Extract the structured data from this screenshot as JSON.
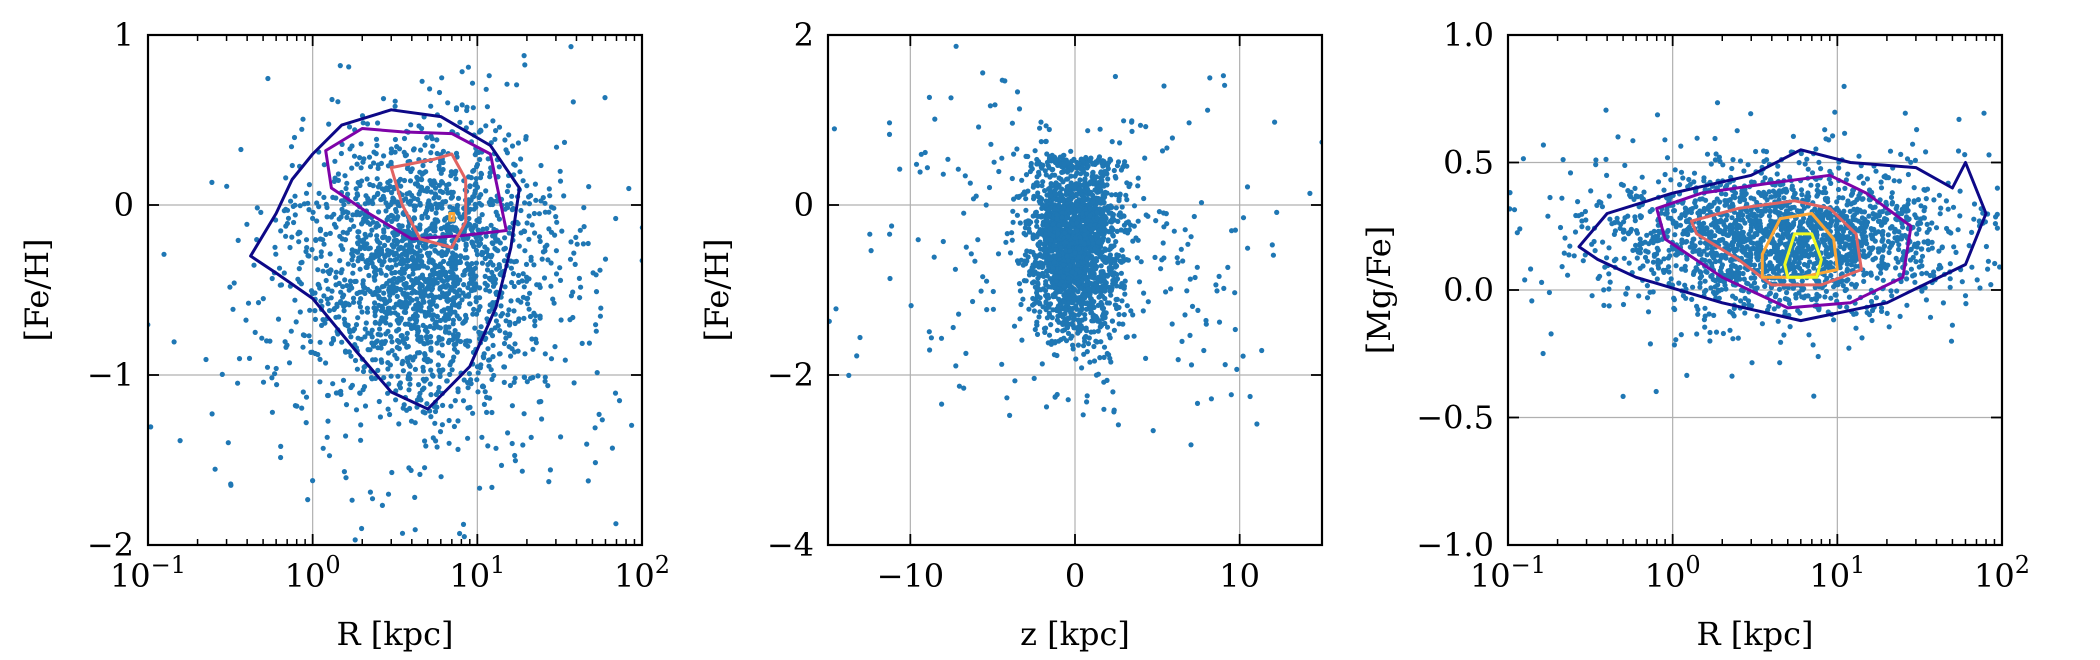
{
  "chart_data": [
    {
      "type": "scatter",
      "xscale": "log",
      "x_ticks": [
        {
          "value": 0.1,
          "base": "10",
          "exp": "−1"
        },
        {
          "value": 1,
          "base": "10",
          "exp": "0"
        },
        {
          "value": 10,
          "base": "10",
          "exp": "1"
        },
        {
          "value": 100,
          "base": "10",
          "exp": "2"
        }
      ],
      "y_ticks": [
        {
          "value": -2,
          "label": "−2"
        },
        {
          "value": -1,
          "label": "−1"
        },
        {
          "value": 0,
          "label": "0"
        },
        {
          "value": 1,
          "label": "1"
        }
      ],
      "xlim": [
        0.1,
        100
      ],
      "ylim": [
        -2,
        1
      ],
      "xlabel": "R [kpc]",
      "ylabel": "[Fe/H]",
      "grid": true,
      "point_color": "#1f77b4",
      "point_cloud": {
        "n": 2200,
        "center_x": 5,
        "center_y": -0.35,
        "spread_log_x": 0.38,
        "spread_y": 0.42
      },
      "contours": [
        {
          "level": 1,
          "color": "#0d0887",
          "points": [
            [
              0.42,
              -0.3
            ],
            [
              0.6,
              -0.05
            ],
            [
              0.75,
              0.15
            ],
            [
              1.0,
              0.3
            ],
            [
              1.5,
              0.47
            ],
            [
              3.0,
              0.56
            ],
            [
              6.0,
              0.52
            ],
            [
              12.0,
              0.35
            ],
            [
              18.0,
              0.1
            ],
            [
              16.0,
              -0.25
            ],
            [
              13.0,
              -0.6
            ],
            [
              9.0,
              -0.95
            ],
            [
              5.0,
              -1.2
            ],
            [
              3.0,
              -1.1
            ],
            [
              1.8,
              -0.85
            ],
            [
              1.0,
              -0.55
            ],
            [
              0.6,
              -0.4
            ]
          ]
        },
        {
          "level": 2,
          "color": "#7e03a8",
          "points": [
            [
              1.2,
              0.32
            ],
            [
              2.0,
              0.45
            ],
            [
              3.5,
              0.43
            ],
            [
              7.0,
              0.42
            ],
            [
              12.0,
              0.3
            ],
            [
              15.0,
              -0.15
            ],
            [
              8.0,
              -0.18
            ],
            [
              4.0,
              -0.2
            ],
            [
              2.2,
              -0.05
            ],
            [
              1.3,
              0.1
            ]
          ]
        },
        {
          "level": 3,
          "color": "#e16462",
          "points": [
            [
              3.0,
              0.22
            ],
            [
              5.5,
              0.27
            ],
            [
              7.0,
              0.3
            ],
            [
              8.5,
              0.15
            ],
            [
              8.5,
              -0.1
            ],
            [
              7.0,
              -0.25
            ],
            [
              4.5,
              -0.2
            ],
            [
              3.5,
              0.0
            ]
          ]
        },
        {
          "level": 4,
          "color": "#fca636",
          "points": [
            [
              6.8,
              -0.05
            ],
            [
              7.2,
              -0.05
            ],
            [
              7.2,
              -0.09
            ],
            [
              6.8,
              -0.09
            ]
          ]
        }
      ]
    },
    {
      "type": "scatter",
      "xscale": "linear",
      "x_ticks": [
        {
          "value": -10,
          "label": "−10"
        },
        {
          "value": 0,
          "label": "0"
        },
        {
          "value": 10,
          "label": "10"
        }
      ],
      "y_ticks": [
        {
          "value": -4,
          "label": "−4"
        },
        {
          "value": -2,
          "label": "−2"
        },
        {
          "value": 0,
          "label": "0"
        },
        {
          "value": 2,
          "label": "2"
        }
      ],
      "xlim": [
        -15,
        15
      ],
      "ylim": [
        -4,
        2
      ],
      "xlabel": "z [kpc]",
      "ylabel": "[Fe/H]",
      "grid": true,
      "point_color": "#1f77b4",
      "point_cloud": {
        "n": 2200,
        "center_x": 0,
        "center_y": -0.45,
        "spread_x": 1.4,
        "spread_y": 0.55
      }
    },
    {
      "type": "scatter",
      "xscale": "log",
      "x_ticks": [
        {
          "value": 0.1,
          "base": "10",
          "exp": "−1"
        },
        {
          "value": 1,
          "base": "10",
          "exp": "0"
        },
        {
          "value": 10,
          "base": "10",
          "exp": "1"
        },
        {
          "value": 100,
          "base": "10",
          "exp": "2"
        }
      ],
      "y_ticks": [
        {
          "value": -1.0,
          "label": "−1.0"
        },
        {
          "value": -0.5,
          "label": "−0.5"
        },
        {
          "value": 0.0,
          "label": "0.0"
        },
        {
          "value": 0.5,
          "label": "0.5"
        },
        {
          "value": 1.0,
          "label": "1.0"
        }
      ],
      "xlim": [
        0.1,
        100
      ],
      "ylim": [
        -1.0,
        1.0
      ],
      "xlabel": "R [kpc]",
      "ylabel": "[Mg/Fe]",
      "grid": true,
      "point_color": "#1f77b4",
      "point_cloud": {
        "n": 2200,
        "center_x": 4.5,
        "center_y": 0.2,
        "spread_log_x": 0.5,
        "spread_y": 0.14
      },
      "contours": [
        {
          "level": 1,
          "color": "#0d0887",
          "points": [
            [
              0.27,
              0.17
            ],
            [
              0.4,
              0.3
            ],
            [
              1.0,
              0.38
            ],
            [
              3.0,
              0.45
            ],
            [
              6.0,
              0.55
            ],
            [
              12.0,
              0.5
            ],
            [
              30.0,
              0.48
            ],
            [
              50.0,
              0.4
            ],
            [
              60.0,
              0.5
            ],
            [
              80.0,
              0.3
            ],
            [
              60.0,
              0.1
            ],
            [
              20.0,
              -0.05
            ],
            [
              6.0,
              -0.12
            ],
            [
              2.0,
              -0.05
            ],
            [
              0.6,
              0.05
            ],
            [
              0.35,
              0.12
            ]
          ]
        },
        {
          "level": 2,
          "color": "#7e03a8",
          "points": [
            [
              0.8,
              0.32
            ],
            [
              1.5,
              0.38
            ],
            [
              4.0,
              0.42
            ],
            [
              9.0,
              0.45
            ],
            [
              15.0,
              0.38
            ],
            [
              28.0,
              0.25
            ],
            [
              25.0,
              0.05
            ],
            [
              12.0,
              -0.05
            ],
            [
              5.0,
              -0.07
            ],
            [
              2.0,
              0.05
            ],
            [
              0.9,
              0.2
            ]
          ]
        },
        {
          "level": 3,
          "color": "#e16462",
          "points": [
            [
              1.3,
              0.27
            ],
            [
              2.5,
              0.32
            ],
            [
              5.5,
              0.35
            ],
            [
              9.0,
              0.32
            ],
            [
              13.0,
              0.22
            ],
            [
              14.0,
              0.08
            ],
            [
              8.0,
              0.02
            ],
            [
              4.0,
              0.02
            ],
            [
              2.5,
              0.12
            ],
            [
              1.4,
              0.22
            ]
          ]
        },
        {
          "level": 4,
          "color": "#fca636",
          "points": [
            [
              3.5,
              0.14
            ],
            [
              4.5,
              0.28
            ],
            [
              7.0,
              0.3
            ],
            [
              9.5,
              0.2
            ],
            [
              10.0,
              0.08
            ],
            [
              6.0,
              0.05
            ],
            [
              3.5,
              0.05
            ]
          ]
        },
        {
          "level": 5,
          "color": "#f0f921",
          "points": [
            [
              4.8,
              0.1
            ],
            [
              5.5,
              0.22
            ],
            [
              7.0,
              0.22
            ],
            [
              8.0,
              0.12
            ],
            [
              7.5,
              0.05
            ],
            [
              5.0,
              0.05
            ]
          ]
        }
      ]
    }
  ]
}
